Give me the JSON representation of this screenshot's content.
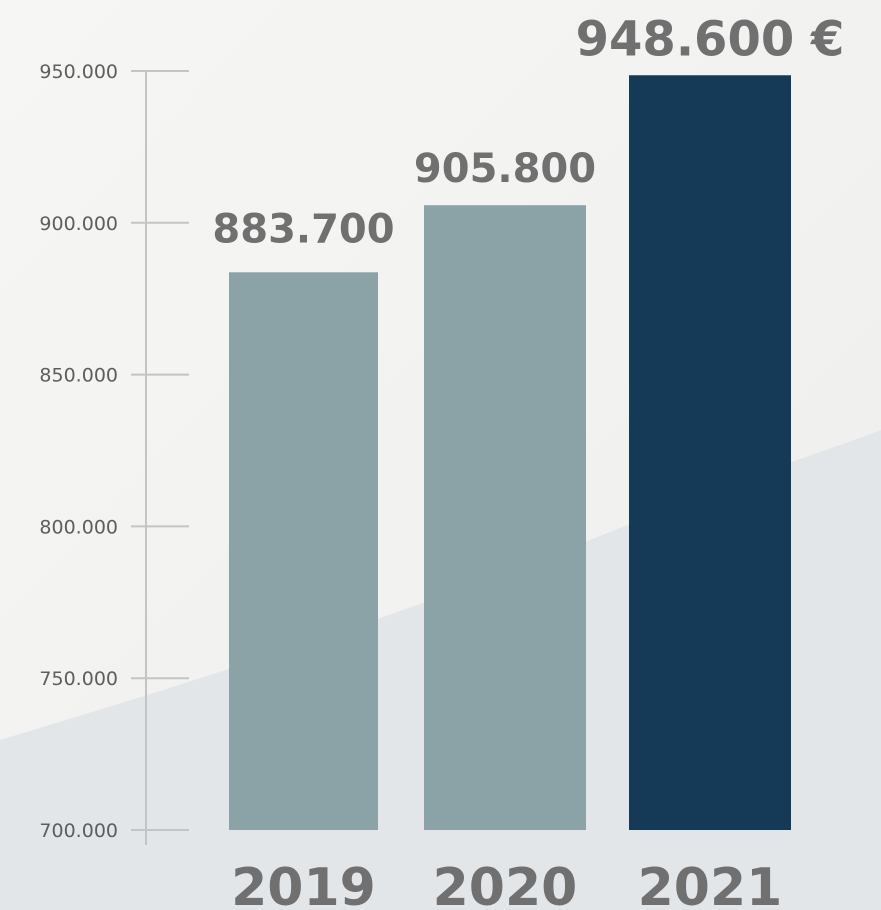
{
  "chart_data": {
    "type": "bar",
    "title": "",
    "xlabel": "",
    "ylabel": "",
    "ylim": [
      700000,
      950000
    ],
    "yticks": [
      700000,
      750000,
      800000,
      850000,
      900000,
      950000
    ],
    "ytick_labels": [
      "700.000",
      "750.000",
      "800.000",
      "850.000",
      "900.000",
      "950.000"
    ],
    "grid": false,
    "legend": "none",
    "categories": [
      "2019",
      "2020",
      "2021"
    ],
    "values": [
      883700,
      905800,
      948600
    ],
    "data_labels": [
      "883.700",
      "905.800",
      "948.600 €"
    ],
    "highlight_index": 2
  },
  "colors": {
    "bar": "#8ba3a7",
    "bar_highlight": "#143a58",
    "axis": "#c4c4c4",
    "background_light": "#f3f3f1",
    "background_wave": "#e2e6e9"
  }
}
